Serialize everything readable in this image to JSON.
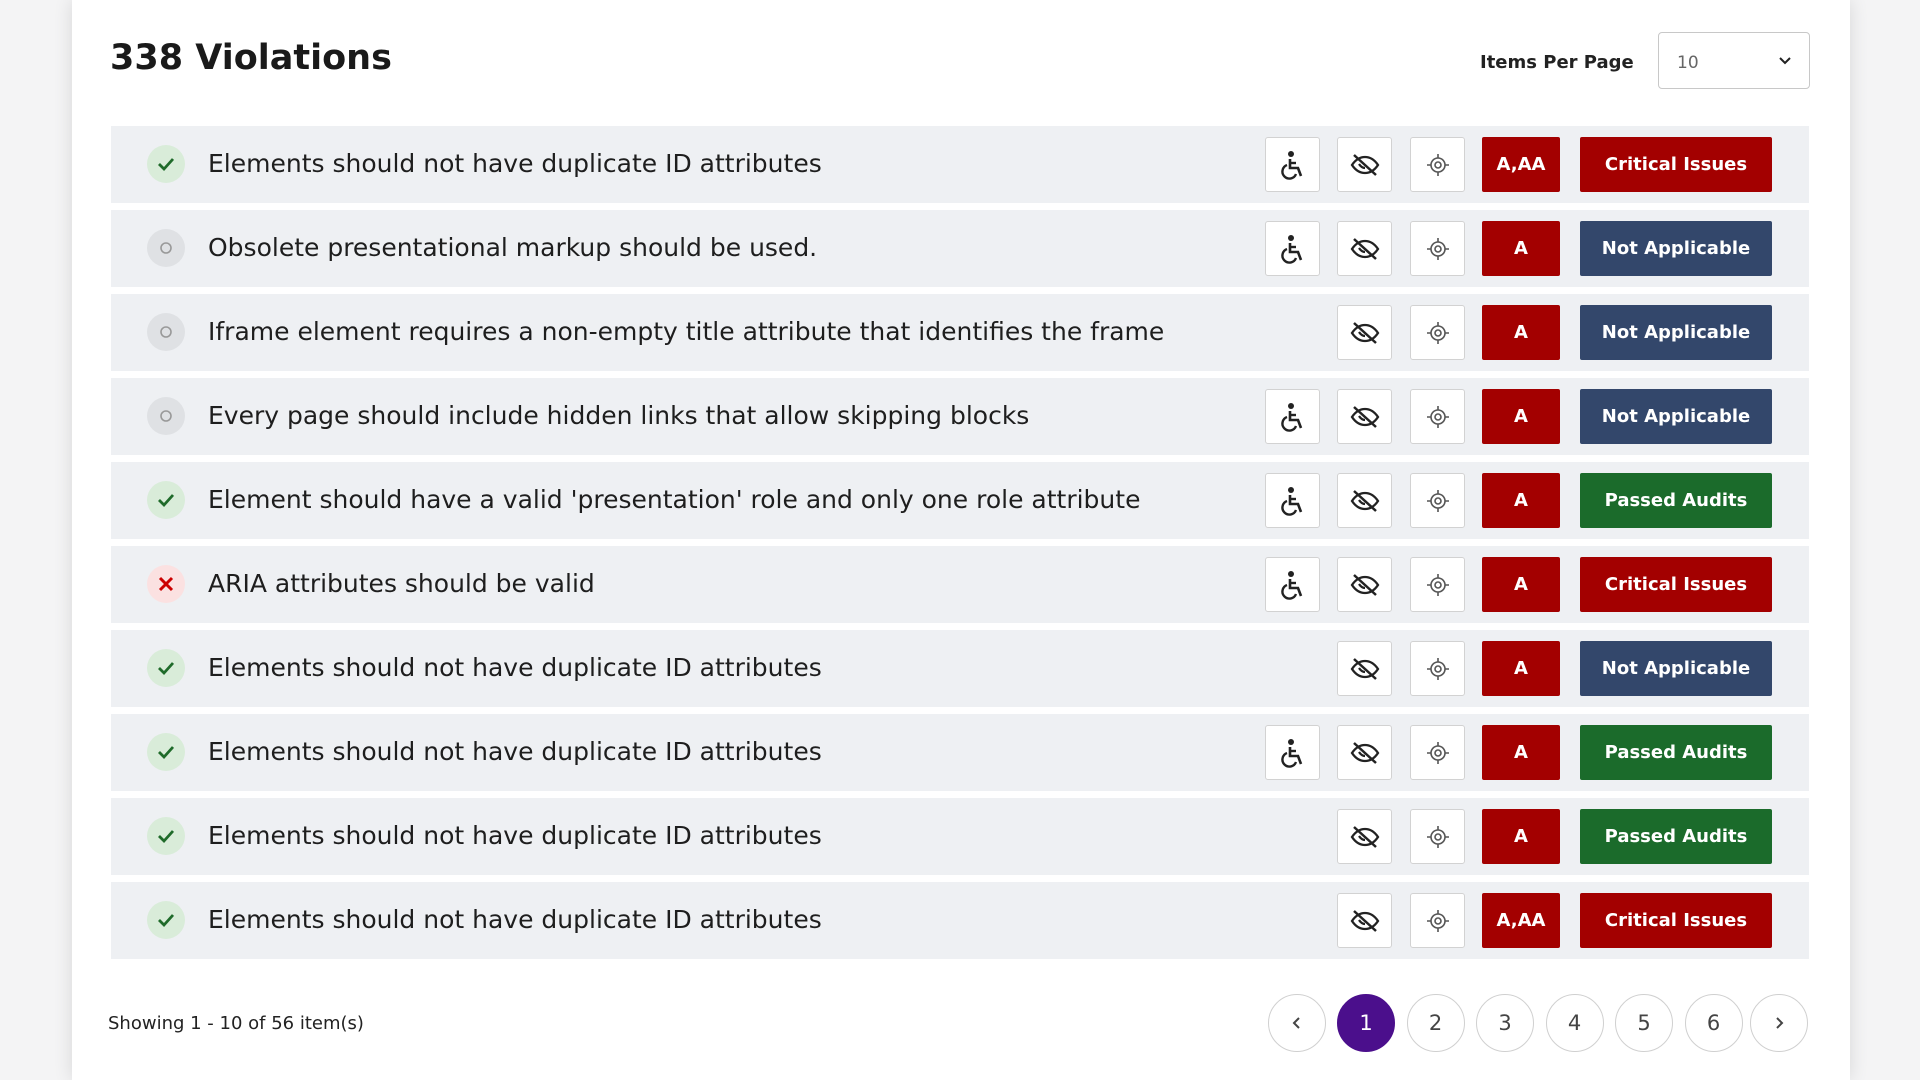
{
  "header": {
    "title": "338 Violations",
    "items_per_page_label": "Items Per Page",
    "items_per_page_value": "10"
  },
  "rows": [
    {
      "status": "pass",
      "text": "Elements should not have duplicate ID attributes",
      "wheelchair_icon": true,
      "level": "A,AA",
      "badge": "Critical Issues",
      "badge_color": "#a30000"
    },
    {
      "status": "na",
      "text": "Obsolete presentational markup should be used.",
      "wheelchair_icon": true,
      "level": "A",
      "badge": "Not Applicable",
      "badge_color": "#33476b"
    },
    {
      "status": "na",
      "text": "Iframe element requires a non-empty title attribute that identifies the frame",
      "wheelchair_icon": false,
      "level": "A",
      "badge": "Not Applicable",
      "badge_color": "#33476b"
    },
    {
      "status": "na",
      "text": "Every page should include hidden links that allow skipping blocks",
      "wheelchair_icon": true,
      "level": "A",
      "badge": "Not Applicable",
      "badge_color": "#33476b"
    },
    {
      "status": "pass",
      "text": "Element should have a valid 'presentation' role and only one role attribute",
      "wheelchair_icon": true,
      "level": "A",
      "badge": "Passed Audits",
      "badge_color": "#1b6b2b"
    },
    {
      "status": "fail",
      "text": "ARIA attributes should be valid",
      "wheelchair_icon": true,
      "level": "A",
      "badge": "Critical Issues",
      "badge_color": "#a30000"
    },
    {
      "status": "pass",
      "text": "Elements should not have duplicate ID attributes",
      "wheelchair_icon": false,
      "level": "A",
      "badge": "Not Applicable",
      "badge_color": "#33476b"
    },
    {
      "status": "pass",
      "text": "Elements should not have duplicate ID attributes",
      "wheelchair_icon": true,
      "level": "A",
      "badge": "Passed Audits",
      "badge_color": "#1b6b2b"
    },
    {
      "status": "pass",
      "text": "Elements should not have duplicate ID attributes",
      "wheelchair_icon": false,
      "level": "A",
      "badge": "Passed Audits",
      "badge_color": "#1b6b2b"
    },
    {
      "status": "pass",
      "text": "Elements should not have duplicate ID attributes",
      "wheelchair_icon": false,
      "level": "A,AA",
      "badge": "Critical Issues",
      "badge_color": "#a30000"
    }
  ],
  "footer": {
    "summary": "Showing 1 - 10 of 56 item(s)",
    "pages": [
      1,
      2,
      3,
      4,
      5,
      6
    ],
    "current_page": 1
  }
}
